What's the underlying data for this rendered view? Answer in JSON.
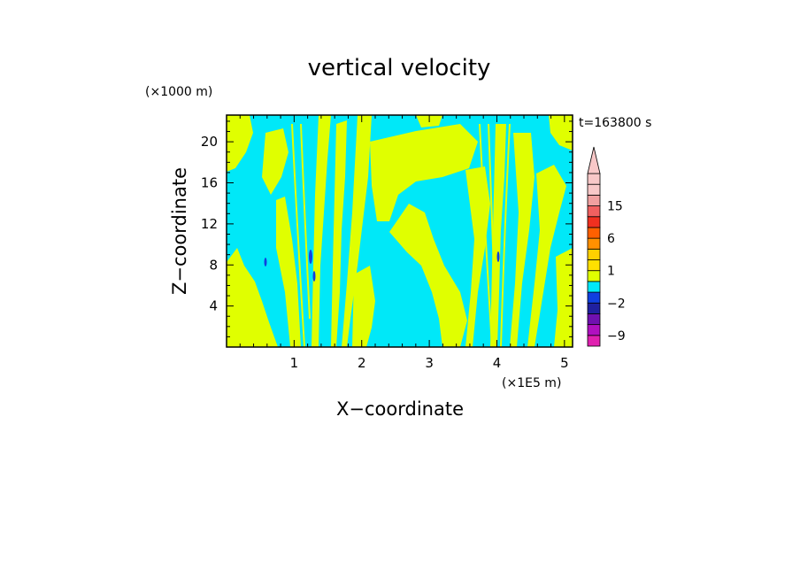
{
  "chart_data": {
    "type": "heatmap",
    "title": "vertical velocity",
    "xlabel": "X−coordinate",
    "ylabel": "Z−coordinate",
    "x_unit": "(×1E5 m)",
    "y_unit": "(×1000 m)",
    "time_label": "t=163800 s",
    "xlim": [
      0,
      5.12
    ],
    "ylim": [
      0,
      22.6
    ],
    "x_ticks": [
      {
        "value": 1,
        "label": "1"
      },
      {
        "value": 2,
        "label": "2"
      },
      {
        "value": 3,
        "label": "3"
      },
      {
        "value": 4,
        "label": "4"
      },
      {
        "value": 5,
        "label": "5"
      }
    ],
    "y_ticks": [
      {
        "value": 4,
        "label": "4"
      },
      {
        "value": 8,
        "label": "8"
      },
      {
        "value": 12,
        "label": "12"
      },
      {
        "value": 16,
        "label": "16"
      },
      {
        "value": 20,
        "label": "20"
      }
    ],
    "colorbar": {
      "levels": [
        -12,
        -9,
        -6,
        -3,
        -2,
        -1,
        0,
        1,
        2,
        3,
        6,
        9,
        12,
        15,
        18,
        21,
        24
      ],
      "colors": [
        "#e020b0",
        "#b010c0",
        "#7010b0",
        "#2020a0",
        "#1040e0",
        "#00e8f8",
        "#e0ff00",
        "#ffe000",
        "#ffd000",
        "#ff9000",
        "#ff6000",
        "#f03020",
        "#f06060",
        "#f0a0a0",
        "#f8c8c8",
        "#f8c8c8"
      ],
      "labels": [
        {
          "value": 15,
          "label": "15"
        },
        {
          "value": 6,
          "label": "6"
        },
        {
          "value": 1,
          "label": "1"
        },
        {
          "value": -2,
          "label": "−2"
        },
        {
          "value": -9,
          "label": "−9"
        }
      ],
      "extend": "max"
    },
    "field_colors": {
      "negative": "#00e8f8",
      "positive": "#e0ff00",
      "strong_negative": "#1040e0"
    }
  }
}
